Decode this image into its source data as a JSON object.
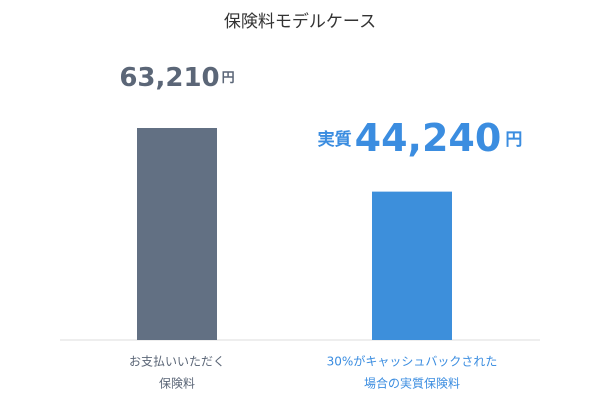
{
  "chart_data": {
    "type": "bar",
    "title": "保険料モデルケース",
    "categories": [
      [
        "お支払いいただく",
        "保険料"
      ],
      [
        "30%がキャッシュバックされた",
        "場合の実質保険料"
      ]
    ],
    "values": [
      63210,
      44240
    ],
    "value_labels": [
      "63,210",
      "44,240"
    ],
    "unit": "円",
    "annotation": "実質",
    "colors": [
      "#627083",
      "#3d8fdb"
    ]
  }
}
